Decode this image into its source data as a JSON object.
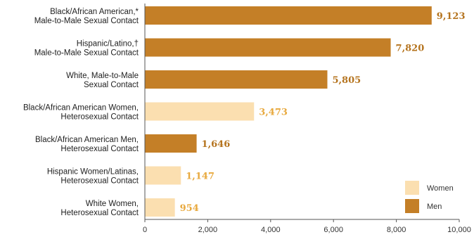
{
  "chart_data": {
    "type": "bar",
    "orientation": "horizontal",
    "categories": [
      [
        "Black/African American,*",
        "Male-to-Male Sexual Contact"
      ],
      [
        "Hispanic/Latino,†",
        "Male-to-Male Sexual Contact"
      ],
      [
        "White, Male-to-Male",
        "Sexual Contact"
      ],
      [
        "Black/African American Women,",
        "Heterosexual Contact"
      ],
      [
        "Black/African American Men,",
        "Heterosexual Contact"
      ],
      [
        "Hispanic Women/Latinas,",
        "Heterosexual Contact"
      ],
      [
        "White Women,",
        "Heterosexual Contact"
      ]
    ],
    "values": [
      9123,
      7820,
      5805,
      3473,
      1646,
      1147,
      954
    ],
    "value_labels": [
      "9,123",
      "7,820",
      "5,805",
      "3,473",
      "1,646",
      "1,147",
      "954"
    ],
    "groups": [
      "Men",
      "Men",
      "Men",
      "Women",
      "Men",
      "Women",
      "Women"
    ],
    "xlim": [
      0,
      10000
    ],
    "xticks": [
      0,
      2000,
      4000,
      6000,
      8000,
      10000
    ],
    "xtick_labels": [
      "0",
      "2,000",
      "4,000",
      "6,000",
      "8,000",
      "10,000"
    ],
    "legend": {
      "position": "bottom-right",
      "entries": [
        {
          "name": "Women",
          "color": "#fbdfb0"
        },
        {
          "name": "Men",
          "color": "#c47f27"
        }
      ]
    },
    "colors": {
      "Men": "#c47f27",
      "Women": "#fbdfb0",
      "label_Men": "#b5741f",
      "label_Women": "#e8a93e"
    },
    "grid": false
  }
}
